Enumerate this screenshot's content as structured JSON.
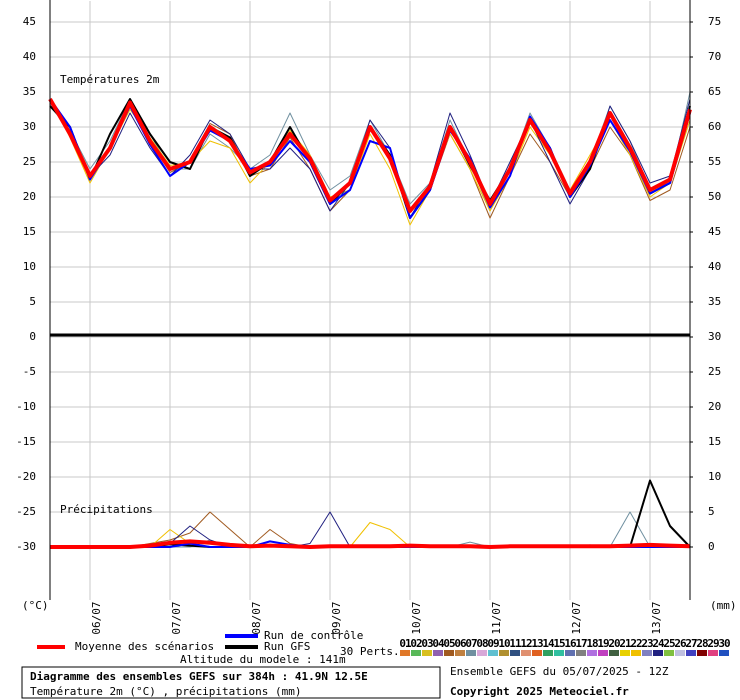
{
  "chart_data": {
    "type": "line",
    "title": "Diagramme des ensembles GEFS sur 384h : 41.9N 12.5E",
    "subtitle": "Température 2m (°C) , précipitations (mm)",
    "panel_labels": [
      "Températures 2m",
      "Précipitations"
    ],
    "y_unit_label": "(°C)",
    "y2_unit_label": "(mm)",
    "altitude": "Altitude du modele : 141m",
    "run_info": "Ensemble GEFS du 05/07/2025 - 12Z",
    "copyright": "Copyright 2025 Meteociel.fr",
    "members_label": "30 Perts.",
    "grid": true,
    "categories": [
      null,
      null,
      "06/07",
      null,
      null,
      null,
      "07/07",
      null,
      null,
      null,
      "08/07",
      null,
      null,
      null,
      "09/07",
      null,
      null,
      null,
      "10/07",
      null,
      null,
      null,
      "11/07",
      null,
      null,
      null,
      "12/07",
      null,
      null,
      null,
      "13/07",
      null,
      null
    ],
    "ylim": [
      -38,
      48
    ],
    "yticks": [
      -30,
      -25,
      -20,
      -15,
      -10,
      -5,
      0,
      5,
      10,
      15,
      20,
      25,
      30,
      35,
      40,
      45
    ],
    "y2lim": [
      -8,
      78
    ],
    "y2ticks": [
      0,
      5,
      10,
      15,
      20,
      25,
      30,
      35,
      40,
      45,
      50,
      55,
      60,
      65,
      70,
      75
    ],
    "members": [
      {
        "label": "01",
        "color": "#e07828"
      },
      {
        "label": "02",
        "color": "#58b858"
      },
      {
        "label": "03",
        "color": "#d8c020"
      },
      {
        "label": "04",
        "color": "#9060b0"
      },
      {
        "label": "05",
        "color": "#a05a20"
      },
      {
        "label": "06",
        "color": "#c08040"
      },
      {
        "label": "07",
        "color": "#7090a0"
      },
      {
        "label": "08",
        "color": "#d8a8d8"
      },
      {
        "label": "09",
        "color": "#60c0d0"
      },
      {
        "label": "10",
        "color": "#b09030"
      },
      {
        "label": "11",
        "color": "#305080"
      },
      {
        "label": "12",
        "color": "#e09070"
      },
      {
        "label": "13",
        "color": "#e06020"
      },
      {
        "label": "14",
        "color": "#30a060"
      },
      {
        "label": "15",
        "color": "#30c0a0"
      },
      {
        "label": "16",
        "color": "#6070b0"
      },
      {
        "label": "17",
        "color": "#808080"
      },
      {
        "label": "18",
        "color": "#b070e0"
      },
      {
        "label": "19",
        "color": "#c040c0"
      },
      {
        "label": "20",
        "color": "#406040"
      },
      {
        "label": "21",
        "color": "#e8d000"
      },
      {
        "label": "22",
        "color": "#f0c000"
      },
      {
        "label": "23",
        "color": "#8080c0"
      },
      {
        "label": "24",
        "color": "#202080"
      },
      {
        "label": "25",
        "color": "#80c040"
      },
      {
        "label": "26",
        "color": "#c0c0e0"
      },
      {
        "label": "27",
        "color": "#4040c0"
      },
      {
        "label": "28",
        "color": "#800000"
      },
      {
        "label": "29",
        "color": "#e04080"
      },
      {
        "label": "30",
        "color": "#2050c0"
      }
    ],
    "series": [
      {
        "name": "Moyenne des scénarios",
        "color": "#ff0000",
        "values": [
          34,
          29,
          23,
          27,
          33.5,
          28,
          24,
          25,
          30,
          28,
          23.5,
          25,
          29,
          25.5,
          19.5,
          22,
          30,
          25.5,
          18,
          21.5,
          30,
          25,
          19,
          24,
          31,
          26.5,
          20.5,
          25,
          32,
          27,
          21,
          22.5,
          32.5
        ],
        "precipitation": [
          0,
          0,
          0,
          0,
          0,
          0.2,
          0.6,
          0.8,
          0.6,
          0.3,
          0.1,
          0.2,
          0.1,
          0,
          0.1,
          0.1,
          0.1,
          0.1,
          0.2,
          0.1,
          0.1,
          0.1,
          0,
          0.1,
          0.1,
          0.1,
          0.1,
          0.1,
          0.1,
          0.2,
          0.3,
          0.2,
          0.1
        ]
      },
      {
        "name": "Run de contrôle",
        "color": "#0000ff",
        "values": [
          34,
          30,
          22.5,
          27,
          33,
          27.5,
          23,
          25,
          29.5,
          28,
          24,
          24.5,
          28,
          25,
          19,
          21,
          28,
          27,
          17,
          21,
          29.5,
          25.5,
          18.5,
          23,
          31.5,
          27,
          20,
          24.5,
          31,
          26.5,
          20.5,
          22,
          32
        ],
        "precipitation": [
          0,
          0,
          0,
          0,
          0,
          0,
          0,
          0.5,
          0,
          0,
          0,
          0.8,
          0.3,
          0,
          0,
          0,
          0,
          0,
          0,
          0,
          0,
          0,
          0,
          0,
          0,
          0,
          0,
          0,
          0,
          0,
          0,
          0,
          0
        ]
      },
      {
        "name": "Run GFS",
        "color": "#000000",
        "values": [
          33,
          30,
          22.5,
          29,
          34,
          29,
          25,
          24,
          30,
          28.5,
          23,
          25,
          30,
          25,
          19,
          22,
          30,
          26,
          17,
          21,
          30,
          24.5,
          19.5,
          24,
          31,
          27,
          20,
          24,
          32,
          27,
          20.5,
          22,
          33
        ],
        "precipitation": [
          0,
          0,
          0,
          0,
          0,
          0,
          0.4,
          0.2,
          0,
          0,
          0,
          0.3,
          0,
          0,
          0,
          0,
          0,
          0,
          0,
          0,
          0,
          0,
          0,
          0,
          0,
          0,
          0,
          0,
          0,
          0,
          9.5,
          3,
          0
        ]
      },
      {
        "member": 23,
        "values": [
          33.5,
          29,
          23,
          26,
          32,
          27,
          23,
          26,
          31,
          29,
          24,
          24,
          27,
          24,
          18,
          22,
          31,
          27,
          17,
          22,
          32,
          26,
          19,
          25,
          31,
          25,
          19,
          24,
          33,
          28,
          22,
          23,
          34
        ],
        "precipitation": [
          0,
          0,
          0,
          0,
          0,
          0,
          0.5,
          3,
          1,
          0,
          0,
          0,
          0,
          0.5,
          5,
          0,
          0,
          0,
          0,
          0,
          0,
          0,
          0,
          0,
          0,
          0,
          0,
          0,
          0,
          0,
          0,
          0,
          0
        ]
      },
      {
        "member": 21,
        "values": [
          34,
          28.5,
          22,
          27,
          32.5,
          28.5,
          24.5,
          25,
          28,
          27,
          22,
          25,
          29.5,
          26,
          20,
          21,
          29,
          24,
          16,
          21,
          29,
          24,
          18,
          23,
          30,
          26,
          21,
          26,
          31,
          26,
          20,
          22,
          31
        ],
        "precipitation": [
          0,
          0,
          0,
          0,
          0,
          0,
          2.5,
          0.5,
          0,
          0,
          0,
          0,
          0,
          0,
          0,
          0,
          3.5,
          2.5,
          0,
          0,
          0,
          0,
          0,
          0,
          0,
          0,
          0,
          0,
          0,
          0,
          0,
          0,
          0
        ]
      },
      {
        "member": 6,
        "values": [
          33,
          29.5,
          24,
          28,
          34,
          29,
          24,
          24,
          29,
          27,
          24,
          26,
          32,
          26,
          21,
          23,
          31,
          26,
          19,
          22,
          31,
          25,
          18,
          24,
          32,
          27,
          21,
          25,
          33,
          28,
          21,
          22,
          35
        ],
        "precipitation": [
          0,
          0,
          0,
          0,
          0,
          0,
          0,
          0,
          1,
          0,
          0,
          0,
          0,
          0,
          0,
          0,
          0,
          0,
          0,
          0,
          0,
          0.7,
          0,
          0,
          0,
          0,
          0,
          0.3,
          0,
          5,
          0,
          0,
          0
        ]
      },
      {
        "member": 4,
        "values": [
          33,
          30,
          23,
          27,
          33,
          28,
          23.5,
          25,
          30.5,
          29,
          23,
          24,
          28.5,
          24,
          18,
          21,
          30,
          26,
          17,
          21,
          29,
          24,
          17,
          23,
          29,
          25,
          20,
          24,
          30,
          26,
          19.5,
          21,
          30
        ],
        "precipitation": [
          0,
          0,
          0,
          0,
          0,
          0.5,
          1,
          2,
          5,
          2.5,
          0,
          2.5,
          0.5,
          0,
          0,
          0,
          0,
          0,
          0,
          0,
          0,
          0,
          0,
          0,
          0,
          0,
          0,
          0,
          0,
          0,
          0,
          0,
          0
        ]
      }
    ]
  }
}
